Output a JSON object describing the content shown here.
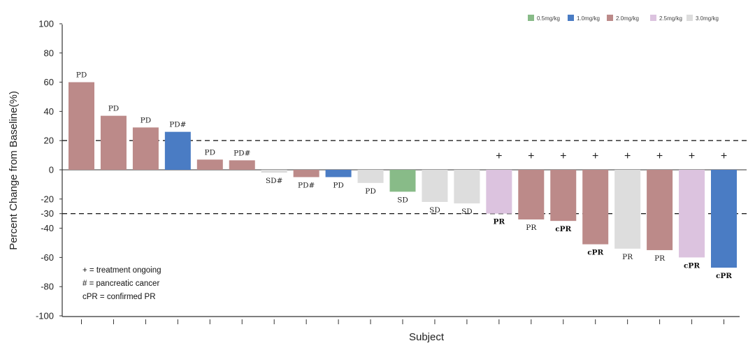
{
  "chart_data": {
    "type": "bar",
    "xlabel": "Subject",
    "ylabel": "Percent Change from Baseline(%)",
    "ylim": [
      -100,
      100
    ],
    "yticks": [
      100,
      80,
      60,
      40,
      20,
      0,
      -20,
      -30,
      -40,
      -60,
      -80,
      -100
    ],
    "reference_lines": [
      20,
      -30
    ],
    "legend": [
      {
        "name": "0.5mg/kg",
        "color": "#88bb88"
      },
      {
        "name": "1.0mg/kg",
        "color": "#4a7cc4"
      },
      {
        "name": "2.0mg/kg",
        "color": "#bc8a89"
      },
      {
        "name": "2.5mg/kg",
        "color": "#dcc3df"
      },
      {
        "name": "3.0mg/kg",
        "color": "#dddddd"
      }
    ],
    "legend_position": "top-right",
    "bars": [
      {
        "value": 60,
        "dose": "2.0mg/kg",
        "label": "PD",
        "bold": false,
        "ongoing": false
      },
      {
        "value": 37,
        "dose": "2.0mg/kg",
        "label": "PD",
        "bold": false,
        "ongoing": false
      },
      {
        "value": 29,
        "dose": "2.0mg/kg",
        "label": "PD",
        "bold": false,
        "ongoing": false
      },
      {
        "value": 26,
        "dose": "1.0mg/kg",
        "label": "PD#",
        "bold": false,
        "ongoing": false
      },
      {
        "value": 7,
        "dose": "2.0mg/kg",
        "label": "PD",
        "bold": false,
        "ongoing": false
      },
      {
        "value": 6.5,
        "dose": "2.0mg/kg",
        "label": "PD#",
        "bold": false,
        "ongoing": false
      },
      {
        "value": -2,
        "dose": "3.0mg/kg",
        "label": "SD#",
        "bold": false,
        "ongoing": false
      },
      {
        "value": -5,
        "dose": "2.0mg/kg",
        "label": "PD#",
        "bold": false,
        "ongoing": false
      },
      {
        "value": -5,
        "dose": "1.0mg/kg",
        "label": "PD",
        "bold": false,
        "ongoing": false
      },
      {
        "value": -9,
        "dose": "3.0mg/kg",
        "label": "PD",
        "bold": false,
        "ongoing": false
      },
      {
        "value": -15,
        "dose": "0.5mg/kg",
        "label": "SD",
        "bold": false,
        "ongoing": false
      },
      {
        "value": -22,
        "dose": "3.0mg/kg",
        "label": "SD",
        "bold": false,
        "ongoing": false
      },
      {
        "value": -23,
        "dose": "3.0mg/kg",
        "label": "SD",
        "bold": false,
        "ongoing": false
      },
      {
        "value": -30,
        "dose": "2.5mg/kg",
        "label": "PR",
        "bold": true,
        "ongoing": true
      },
      {
        "value": -34,
        "dose": "2.0mg/kg",
        "label": "PR",
        "bold": false,
        "ongoing": true
      },
      {
        "value": -35,
        "dose": "2.0mg/kg",
        "label": "cPR",
        "bold": true,
        "ongoing": true
      },
      {
        "value": -51,
        "dose": "2.0mg/kg",
        "label": "cPR",
        "bold": true,
        "ongoing": true
      },
      {
        "value": -54,
        "dose": "3.0mg/kg",
        "label": "PR",
        "bold": false,
        "ongoing": true
      },
      {
        "value": -55,
        "dose": "2.0mg/kg",
        "label": "PR",
        "bold": false,
        "ongoing": true
      },
      {
        "value": -60,
        "dose": "2.5mg/kg",
        "label": "cPR",
        "bold": true,
        "ongoing": true
      },
      {
        "value": -67,
        "dose": "1.0mg/kg",
        "label": "cPR",
        "bold": true,
        "ongoing": true
      }
    ],
    "ongoing_marker": "+",
    "notes": [
      "+ = treatment ongoing",
      "# = pancreatic cancer",
      "cPR = confirmed PR"
    ]
  }
}
